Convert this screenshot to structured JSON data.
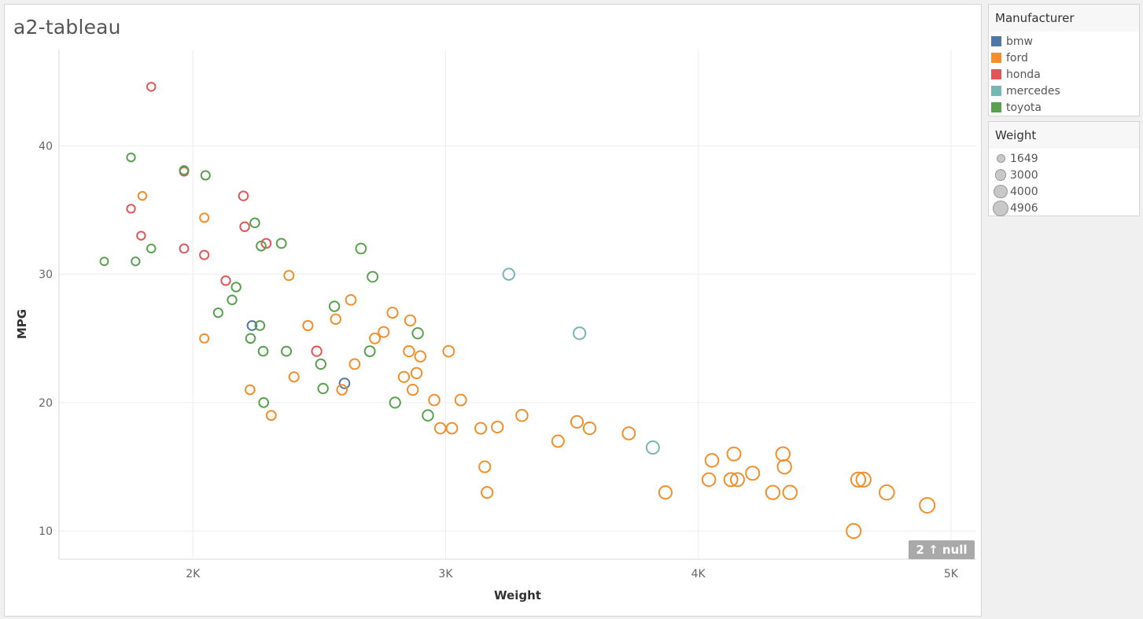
{
  "title": "a2-tableau",
  "null_indicator": {
    "count": "2",
    "arrow": "↑",
    "label": "null"
  },
  "legends": {
    "manufacturer": {
      "title": "Manufacturer",
      "items": [
        {
          "label": "bmw",
          "color": "#4e79a7"
        },
        {
          "label": "ford",
          "color": "#f28e2b"
        },
        {
          "label": "honda",
          "color": "#e15759"
        },
        {
          "label": "mercedes",
          "color": "#76b7b2"
        },
        {
          "label": "toyota",
          "color": "#59a14f"
        }
      ]
    },
    "weight": {
      "title": "Weight",
      "items": [
        {
          "label": "1649",
          "value": 1649
        },
        {
          "label": "3000",
          "value": 3000
        },
        {
          "label": "4000",
          "value": 4000
        },
        {
          "label": "4906",
          "value": 4906
        }
      ]
    }
  },
  "chart_data": {
    "type": "scatter",
    "title": "a2-tableau",
    "xlabel": "Weight",
    "ylabel": "MPG",
    "xlim": [
      1470,
      5100
    ],
    "ylim": [
      7.8,
      47.5
    ],
    "x_ticks": [
      {
        "value": 2000,
        "label": "2K"
      },
      {
        "value": 3000,
        "label": "3K"
      },
      {
        "value": 4000,
        "label": "4K"
      },
      {
        "value": 5000,
        "label": "5K"
      }
    ],
    "y_ticks": [
      {
        "value": 10,
        "label": "10"
      },
      {
        "value": 20,
        "label": "20"
      },
      {
        "value": 30,
        "label": "30"
      },
      {
        "value": 40,
        "label": "40"
      }
    ],
    "grid": true,
    "marker": "open-circle",
    "size_encoding": "Weight",
    "color_encoding": "Manufacturer",
    "series": [
      {
        "name": "bmw",
        "color": "#4e79a7",
        "points": [
          [
            2234,
            26
          ],
          [
            2600,
            21.5
          ]
        ]
      },
      {
        "name": "ford",
        "color": "#f28e2b",
        "points": [
          [
            1800,
            36.1
          ],
          [
            2045,
            34.4
          ],
          [
            2045,
            25
          ],
          [
            2226,
            21
          ],
          [
            2310,
            19
          ],
          [
            2380,
            29.9
          ],
          [
            2400,
            22
          ],
          [
            2455,
            26
          ],
          [
            2565,
            26.5
          ],
          [
            2590,
            21
          ],
          [
            2625,
            28
          ],
          [
            2640,
            23
          ],
          [
            2720,
            25
          ],
          [
            2755,
            25.5
          ],
          [
            2790,
            27
          ],
          [
            2835,
            22
          ],
          [
            2855,
            24
          ],
          [
            2860,
            26.4
          ],
          [
            2870,
            21
          ],
          [
            2885,
            22.3
          ],
          [
            2900,
            23.6
          ],
          [
            2955,
            20.2
          ],
          [
            2979,
            18
          ],
          [
            3012,
            24
          ],
          [
            3025,
            18
          ],
          [
            3060,
            20.2
          ],
          [
            3139,
            18
          ],
          [
            3155,
            15
          ],
          [
            3164,
            13
          ],
          [
            3205,
            18.1
          ],
          [
            3302,
            19
          ],
          [
            3445,
            17
          ],
          [
            3520,
            18.5
          ],
          [
            3570,
            18
          ],
          [
            3725,
            17.6
          ],
          [
            3870,
            13
          ],
          [
            4042,
            14
          ],
          [
            4054,
            15.5
          ],
          [
            4129,
            14
          ],
          [
            4141,
            16
          ],
          [
            4155,
            14
          ],
          [
            4215,
            14.5
          ],
          [
            4295,
            13
          ],
          [
            4335,
            16
          ],
          [
            4341,
            15
          ],
          [
            4363,
            13
          ],
          [
            4615,
            10
          ],
          [
            4633,
            14
          ],
          [
            4654,
            14
          ],
          [
            4746,
            13
          ],
          [
            4906,
            12
          ]
        ]
      },
      {
        "name": "honda",
        "color": "#e15759",
        "points": [
          [
            1835,
            44.6
          ],
          [
            1755,
            35.1
          ],
          [
            1795,
            33
          ],
          [
            1965,
            38
          ],
          [
            1965,
            32
          ],
          [
            2045,
            31.5
          ],
          [
            2130,
            29.5
          ],
          [
            2200,
            36.1
          ],
          [
            2205,
            33.7
          ],
          [
            2290,
            32.4
          ],
          [
            2490,
            24
          ]
        ]
      },
      {
        "name": "mercedes",
        "color": "#76b7b2",
        "points": [
          [
            3250,
            30
          ],
          [
            3530,
            25.4
          ],
          [
            3820,
            16.5
          ]
        ]
      },
      {
        "name": "toyota",
        "color": "#59a14f",
        "points": [
          [
            1649,
            31
          ],
          [
            1755,
            39.1
          ],
          [
            1773,
            31
          ],
          [
            1835,
            32
          ],
          [
            1965,
            38.1
          ],
          [
            2050,
            37.7
          ],
          [
            2100,
            27
          ],
          [
            2155,
            28
          ],
          [
            2171,
            29
          ],
          [
            2228,
            25
          ],
          [
            2245,
            34
          ],
          [
            2265,
            26
          ],
          [
            2270,
            32.2
          ],
          [
            2278,
            24
          ],
          [
            2280,
            20
          ],
          [
            2350,
            32.4
          ],
          [
            2370,
            24
          ],
          [
            2506,
            23
          ],
          [
            2515,
            21.1
          ],
          [
            2560,
            27.5
          ],
          [
            2665,
            32
          ],
          [
            2700,
            24
          ],
          [
            2711,
            29.8
          ],
          [
            2800,
            20
          ],
          [
            2890,
            25.4
          ],
          [
            2930,
            19
          ]
        ]
      }
    ]
  }
}
